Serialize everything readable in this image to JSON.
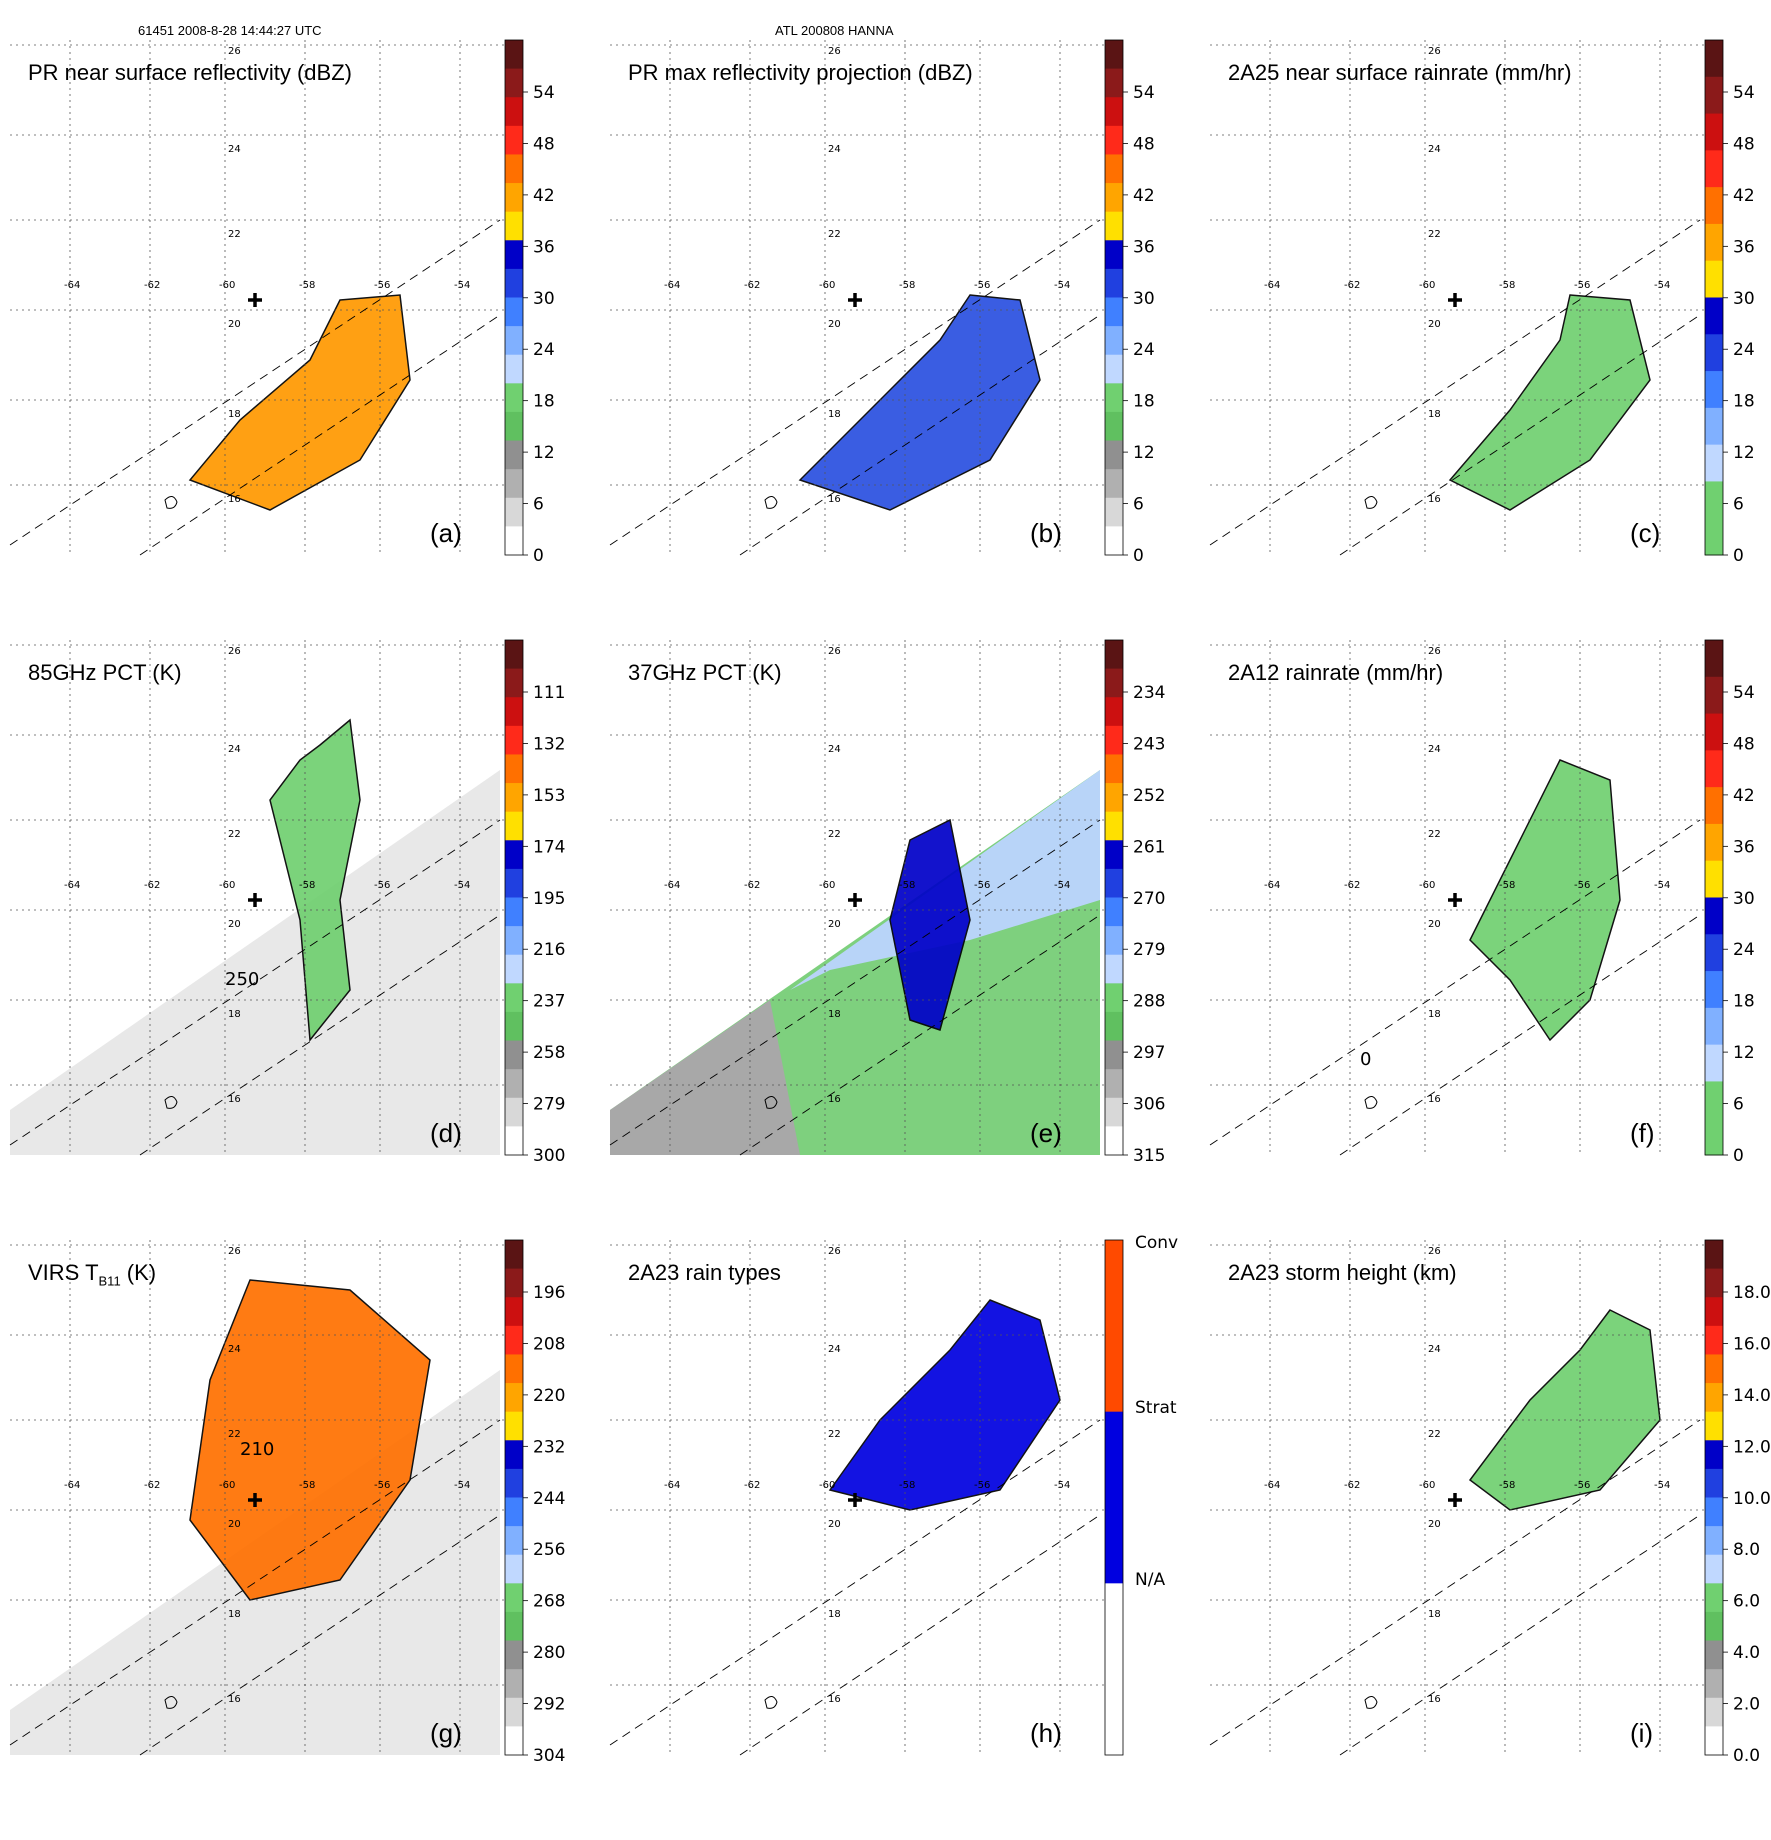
{
  "header": {
    "left": "61451 2008-8-28 14:44:27 UTC",
    "center": "ATL 200808 HANNA"
  },
  "map": {
    "lon_ticks": [
      "-64",
      "-62",
      "-60",
      "-58",
      "-56",
      "-54"
    ],
    "lat_ticks": [
      "26",
      "24",
      "22",
      "20",
      "18",
      "16"
    ],
    "storm_center_lon": -59.8,
    "storm_center_lat": 20.2
  },
  "chart_data": [
    {
      "type": "heatmap",
      "panel": "a",
      "title": "PR near surface reflectivity (dBZ)",
      "label": "(a)",
      "colorbar_ticks": [
        "54",
        "48",
        "42",
        "36",
        "30",
        "24",
        "18",
        "12",
        "6",
        "0"
      ],
      "colorbar_colors": [
        "#5a1414",
        "#8b1a1a",
        "#cc1010",
        "#ff2a1a",
        "#ff7000",
        "#ffa500",
        "#ffe000",
        "#0000c8",
        "#2040e0",
        "#4080ff",
        "#80b0ff",
        "#c0d8ff",
        "#70d070",
        "#60c060",
        "#909090",
        "#b0b0b0",
        "#d8d8d8",
        "#ffffff"
      ],
      "colorbar_range": [
        0,
        60
      ],
      "data_color": "#ff9900"
    },
    {
      "type": "heatmap",
      "panel": "b",
      "title": "PR max reflectivity projection (dBZ)",
      "label": "(b)",
      "colorbar_ticks": [
        "54",
        "48",
        "42",
        "36",
        "30",
        "24",
        "18",
        "12",
        "6",
        "0"
      ],
      "colorbar_colors": [
        "#5a1414",
        "#8b1a1a",
        "#cc1010",
        "#ff2a1a",
        "#ff7000",
        "#ffa500",
        "#ffe000",
        "#0000c8",
        "#2040e0",
        "#4080ff",
        "#80b0ff",
        "#c0d8ff",
        "#70d070",
        "#60c060",
        "#909090",
        "#b0b0b0",
        "#d8d8d8",
        "#ffffff"
      ],
      "colorbar_range": [
        0,
        60
      ],
      "data_color": "#2a50e0"
    },
    {
      "type": "heatmap",
      "panel": "c",
      "title": "2A25 near surface rainrate (mm/hr)",
      "label": "(c)",
      "colorbar_ticks": [
        "54",
        "48",
        "42",
        "36",
        "30",
        "24",
        "18",
        "12",
        "6",
        "0"
      ],
      "colorbar_colors": [
        "#5a1414",
        "#8b1a1a",
        "#cc1010",
        "#ff2a1a",
        "#ff7000",
        "#ffa500",
        "#ffe000",
        "#0000c8",
        "#2040e0",
        "#4080ff",
        "#80b0ff",
        "#c0d8ff",
        "#70d070",
        "#70d070"
      ],
      "colorbar_range": [
        0,
        60
      ],
      "data_color": "#70d070"
    },
    {
      "type": "heatmap",
      "panel": "d",
      "title": "85GHz PCT (K)",
      "label": "(d)",
      "contour_label": "250",
      "colorbar_ticks": [
        "111",
        "132",
        "153",
        "174",
        "195",
        "216",
        "237",
        "258",
        "279",
        "300"
      ],
      "colorbar_colors": [
        "#5a1414",
        "#8b1a1a",
        "#cc1010",
        "#ff2a1a",
        "#ff7000",
        "#ffa500",
        "#ffe000",
        "#0000c8",
        "#2040e0",
        "#4080ff",
        "#80b0ff",
        "#c0d8ff",
        "#70d070",
        "#60c060",
        "#909090",
        "#b0b0b0",
        "#d8d8d8",
        "#ffffff"
      ],
      "colorbar_range": [
        300,
        90
      ],
      "data_color": "#70d070"
    },
    {
      "type": "heatmap",
      "panel": "e",
      "title": "37GHz PCT (K)",
      "label": "(e)",
      "colorbar_ticks": [
        "234",
        "243",
        "252",
        "261",
        "270",
        "279",
        "288",
        "297",
        "306",
        "315"
      ],
      "colorbar_colors": [
        "#5a1414",
        "#8b1a1a",
        "#cc1010",
        "#ff2a1a",
        "#ff7000",
        "#ffa500",
        "#ffe000",
        "#0000c8",
        "#2040e0",
        "#4080ff",
        "#80b0ff",
        "#c0d8ff",
        "#70d070",
        "#60c060",
        "#909090",
        "#b0b0b0",
        "#d8d8d8",
        "#ffffff"
      ],
      "colorbar_range": [
        315,
        225
      ],
      "data_color": "#0000c8"
    },
    {
      "type": "heatmap",
      "panel": "f",
      "title": "2A12 rainrate (mm/hr)",
      "label": "(f)",
      "contour_label": "0",
      "colorbar_ticks": [
        "54",
        "48",
        "42",
        "36",
        "30",
        "24",
        "18",
        "12",
        "6",
        "0"
      ],
      "colorbar_colors": [
        "#5a1414",
        "#8b1a1a",
        "#cc1010",
        "#ff2a1a",
        "#ff7000",
        "#ffa500",
        "#ffe000",
        "#0000c8",
        "#2040e0",
        "#4080ff",
        "#80b0ff",
        "#c0d8ff",
        "#70d070",
        "#70d070"
      ],
      "colorbar_range": [
        0,
        60
      ],
      "data_color": "#70d070"
    },
    {
      "type": "heatmap",
      "panel": "g",
      "title": "VIRS T",
      "title_sub": "B11",
      "title_suffix": " (K)",
      "label": "(g)",
      "contour_label": "210",
      "colorbar_ticks": [
        "196",
        "208",
        "220",
        "232",
        "244",
        "256",
        "268",
        "280",
        "292",
        "304"
      ],
      "colorbar_colors": [
        "#5a1414",
        "#8b1a1a",
        "#cc1010",
        "#ff2a1a",
        "#ff7000",
        "#ffa500",
        "#ffe000",
        "#0000c8",
        "#2040e0",
        "#4080ff",
        "#80b0ff",
        "#c0d8ff",
        "#70d070",
        "#60c060",
        "#909090",
        "#b0b0b0",
        "#d8d8d8",
        "#ffffff"
      ],
      "colorbar_range": [
        304,
        184
      ],
      "data_color": "#ff7000"
    },
    {
      "type": "heatmap",
      "panel": "h",
      "title": "2A23 rain types",
      "label": "(h)",
      "categorical_labels": [
        "Conv",
        "Strat",
        "N/A"
      ],
      "colorbar_colors": [
        "#ff4a00",
        "#0000e0",
        "#ffffff"
      ],
      "data_color": "#0000e0"
    },
    {
      "type": "heatmap",
      "panel": "i",
      "title": "2A23 storm height (km)",
      "label": "(i)",
      "colorbar_ticks": [
        "18.0",
        "16.0",
        "14.0",
        "12.0",
        "10.0",
        "8.0",
        "6.0",
        "4.0",
        "2.0",
        "0.0"
      ],
      "colorbar_colors": [
        "#5a1414",
        "#8b1a1a",
        "#cc1010",
        "#ff2a1a",
        "#ff7000",
        "#ffa500",
        "#ffe000",
        "#0000c8",
        "#2040e0",
        "#4080ff",
        "#80b0ff",
        "#c0d8ff",
        "#70d070",
        "#60c060",
        "#909090",
        "#b0b0b0",
        "#d8d8d8",
        "#ffffff"
      ],
      "colorbar_range": [
        0,
        20
      ],
      "data_color": "#70d070"
    }
  ]
}
